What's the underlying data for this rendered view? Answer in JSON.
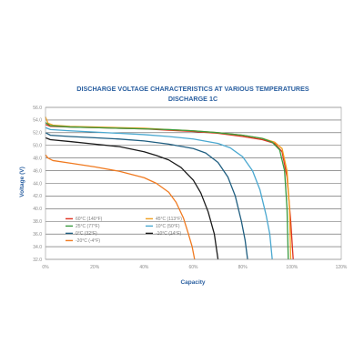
{
  "chart_data": {
    "type": "line",
    "title": "DISCHARGE VOLTAGE CHARACTERISTICS AT VARIOUS TEMPERATURES",
    "subtitle": "DISCHARGE 1C",
    "xlabel": "Capacity",
    "ylabel": "Voltage (V)",
    "xlim": [
      0,
      120
    ],
    "ylim": [
      32.0,
      56.0
    ],
    "x_ticks": [
      "0%",
      "20%",
      "40%",
      "60%",
      "80%",
      "100%",
      "120%"
    ],
    "y_ticks": [
      "32.0",
      "34.0",
      "36.0",
      "38.0",
      "40.0",
      "42.0",
      "44.0",
      "46.0",
      "48.0",
      "50.0",
      "52.0",
      "54.0",
      "56.0"
    ],
    "grid": "horizontal",
    "legend_position": "lower-left",
    "series": [
      {
        "name": "60°C (140°F)",
        "color": "#e0301e",
        "points": [
          [
            0,
            53.3
          ],
          [
            2,
            53.0
          ],
          [
            10,
            52.9
          ],
          [
            20,
            52.8
          ],
          [
            30,
            52.7
          ],
          [
            40,
            52.6
          ],
          [
            50,
            52.4
          ],
          [
            60,
            52.2
          ],
          [
            70,
            51.9
          ],
          [
            80,
            51.4
          ],
          [
            88,
            50.9
          ],
          [
            93,
            50.3
          ],
          [
            96,
            49.0
          ],
          [
            98,
            45.0
          ],
          [
            99.5,
            38.0
          ],
          [
            100.5,
            32.0
          ]
        ]
      },
      {
        "name": "45°C (113°F)",
        "color": "#f0a020",
        "points": [
          [
            0,
            54.5
          ],
          [
            1,
            53.5
          ],
          [
            3,
            53.2
          ],
          [
            10,
            53.0
          ],
          [
            20,
            52.9
          ],
          [
            30,
            52.8
          ],
          [
            40,
            52.7
          ],
          [
            50,
            52.5
          ],
          [
            60,
            52.3
          ],
          [
            70,
            52.0
          ],
          [
            80,
            51.6
          ],
          [
            88,
            51.1
          ],
          [
            93,
            50.5
          ],
          [
            96,
            49.5
          ],
          [
            98,
            46.0
          ],
          [
            99,
            40.0
          ],
          [
            99.5,
            32.0
          ]
        ]
      },
      {
        "name": "25°C (77°F)",
        "color": "#3a9a40",
        "points": [
          [
            0,
            53.6
          ],
          [
            2,
            53.1
          ],
          [
            10,
            52.9
          ],
          [
            20,
            52.8
          ],
          [
            30,
            52.7
          ],
          [
            40,
            52.6
          ],
          [
            50,
            52.5
          ],
          [
            60,
            52.3
          ],
          [
            70,
            52.0
          ],
          [
            80,
            51.6
          ],
          [
            88,
            51.1
          ],
          [
            92,
            50.5
          ],
          [
            95,
            49.3
          ],
          [
            97,
            46.0
          ],
          [
            98,
            40.0
          ],
          [
            98.5,
            32.0
          ]
        ]
      },
      {
        "name": "10°C (50°F)",
        "color": "#4aa8d0",
        "points": [
          [
            0,
            52.8
          ],
          [
            2,
            52.5
          ],
          [
            10,
            52.3
          ],
          [
            20,
            52.1
          ],
          [
            30,
            51.9
          ],
          [
            40,
            51.7
          ],
          [
            50,
            51.4
          ],
          [
            60,
            51.0
          ],
          [
            70,
            50.3
          ],
          [
            75,
            49.6
          ],
          [
            80,
            48.2
          ],
          [
            84,
            46.0
          ],
          [
            87,
            43.0
          ],
          [
            89.5,
            39.0
          ],
          [
            91,
            36.0
          ],
          [
            92,
            32.0
          ]
        ]
      },
      {
        "name": "0°C (32°F)",
        "color": "#1f5e80",
        "points": [
          [
            0,
            52.0
          ],
          [
            2,
            51.6
          ],
          [
            10,
            51.4
          ],
          [
            20,
            51.2
          ],
          [
            30,
            51.0
          ],
          [
            40,
            50.7
          ],
          [
            50,
            50.2
          ],
          [
            60,
            49.5
          ],
          [
            65,
            48.8
          ],
          [
            70,
            47.3
          ],
          [
            74,
            45.0
          ],
          [
            77,
            42.0
          ],
          [
            79.5,
            38.0
          ],
          [
            81,
            35.0
          ],
          [
            82,
            32.0
          ]
        ]
      },
      {
        "name": "-10°C (14°F)",
        "color": "#1a1a1a",
        "points": [
          [
            0,
            51.2
          ],
          [
            2,
            50.9
          ],
          [
            10,
            50.6
          ],
          [
            20,
            50.2
          ],
          [
            30,
            49.8
          ],
          [
            40,
            49.0
          ],
          [
            45,
            48.4
          ],
          [
            50,
            47.7
          ],
          [
            55,
            46.5
          ],
          [
            60,
            44.5
          ],
          [
            63,
            42.5
          ],
          [
            66,
            39.5
          ],
          [
            68.5,
            36.0
          ],
          [
            70,
            32.0
          ]
        ]
      },
      {
        "name": "-20°C (-4°F)",
        "color": "#f07a20",
        "points": [
          [
            0,
            48.5
          ],
          [
            1,
            48.0
          ],
          [
            3,
            47.6
          ],
          [
            10,
            47.2
          ],
          [
            20,
            46.6
          ],
          [
            30,
            45.9
          ],
          [
            40,
            44.9
          ],
          [
            45,
            44.0
          ],
          [
            50,
            42.6
          ],
          [
            53,
            41.0
          ],
          [
            56,
            38.5
          ],
          [
            58,
            36.0
          ],
          [
            59.5,
            34.0
          ],
          [
            60.5,
            32.0
          ]
        ]
      }
    ]
  }
}
